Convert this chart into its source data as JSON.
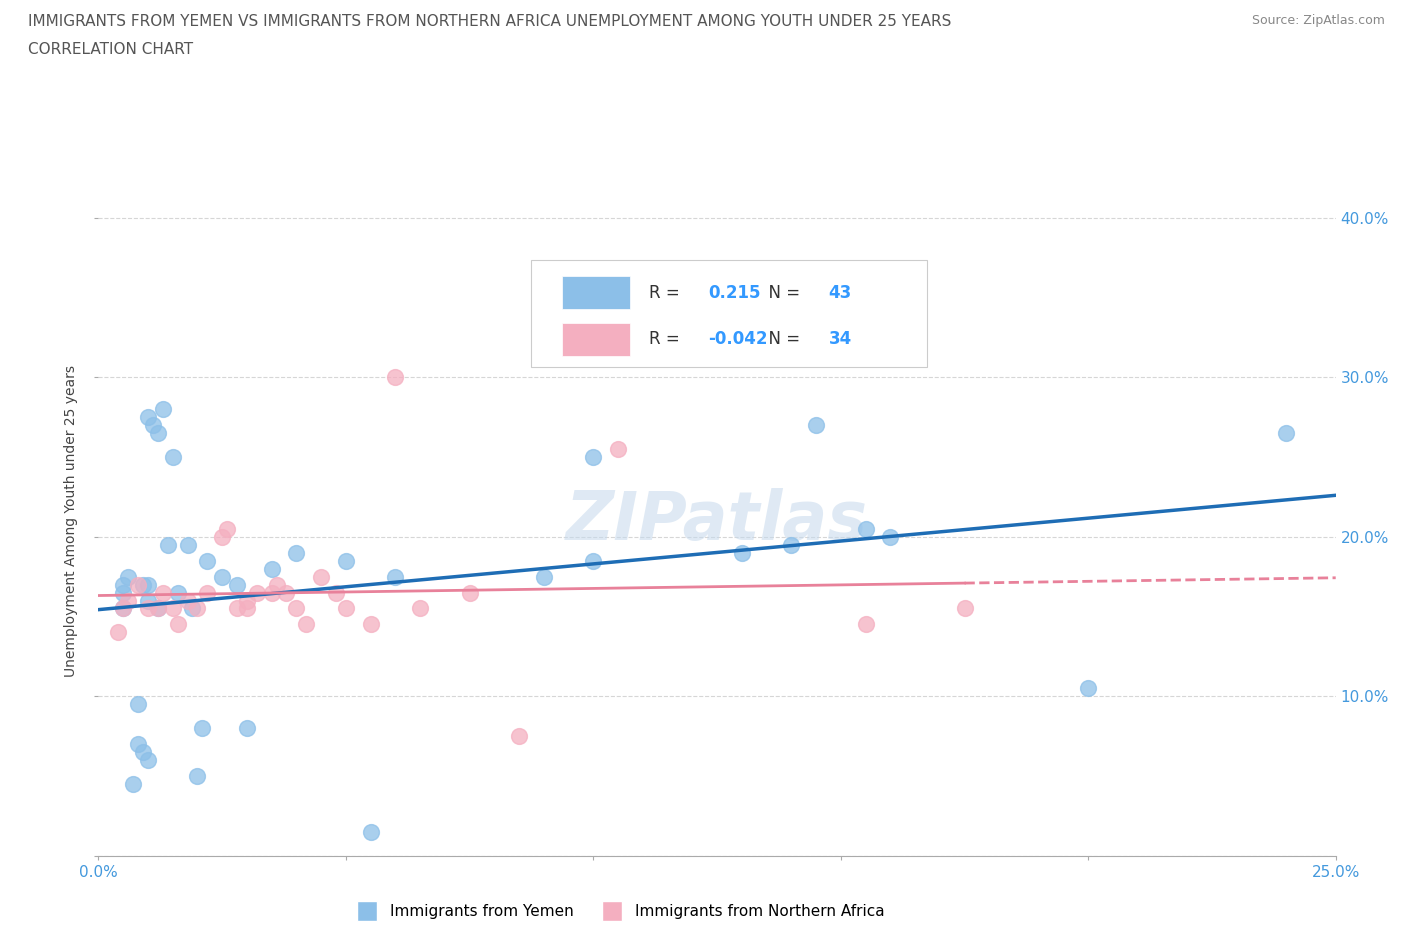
{
  "title_line1": "IMMIGRANTS FROM YEMEN VS IMMIGRANTS FROM NORTHERN AFRICA UNEMPLOYMENT AMONG YOUTH UNDER 25 YEARS",
  "title_line2": "CORRELATION CHART",
  "source": "Source: ZipAtlas.com",
  "ylabel": "Unemployment Among Youth under 25 years",
  "xlim": [
    0.0,
    0.25
  ],
  "ylim": [
    0.0,
    0.42
  ],
  "xticks": [
    0.0,
    0.05,
    0.1,
    0.15,
    0.2,
    0.25
  ],
  "xtick_labels": [
    "0.0%",
    "",
    "",
    "",
    "",
    "25.0%"
  ],
  "yticks": [
    0.0,
    0.1,
    0.2,
    0.3,
    0.4
  ],
  "ytick_labels_left": [
    "",
    "",
    "",
    "",
    ""
  ],
  "ytick_labels_right": [
    "",
    "10.0%",
    "20.0%",
    "30.0%",
    "40.0%"
  ],
  "yemen_color": "#8cbfe8",
  "northern_africa_color": "#f4afc0",
  "yemen_line_color": "#1e6db5",
  "northern_africa_line_color": "#e8819a",
  "R_yemen": 0.215,
  "N_yemen": 43,
  "R_northern_africa": -0.042,
  "N_northern_africa": 34,
  "watermark": "ZIPatlas",
  "yemen_x": [
    0.005,
    0.005,
    0.005,
    0.006,
    0.007,
    0.008,
    0.008,
    0.009,
    0.009,
    0.01,
    0.01,
    0.01,
    0.01,
    0.011,
    0.012,
    0.012,
    0.013,
    0.014,
    0.015,
    0.016,
    0.018,
    0.019,
    0.02,
    0.021,
    0.022,
    0.025,
    0.028,
    0.03,
    0.035,
    0.04,
    0.05,
    0.055,
    0.06,
    0.09,
    0.1,
    0.1,
    0.13,
    0.14,
    0.145,
    0.155,
    0.16,
    0.2,
    0.24
  ],
  "yemen_y": [
    0.155,
    0.165,
    0.17,
    0.175,
    0.045,
    0.07,
    0.095,
    0.065,
    0.17,
    0.06,
    0.16,
    0.17,
    0.275,
    0.27,
    0.155,
    0.265,
    0.28,
    0.195,
    0.25,
    0.165,
    0.195,
    0.155,
    0.05,
    0.08,
    0.185,
    0.175,
    0.17,
    0.08,
    0.18,
    0.19,
    0.185,
    0.015,
    0.175,
    0.175,
    0.185,
    0.25,
    0.19,
    0.195,
    0.27,
    0.205,
    0.2,
    0.105,
    0.265
  ],
  "northern_africa_x": [
    0.004,
    0.005,
    0.006,
    0.008,
    0.01,
    0.012,
    0.013,
    0.015,
    0.016,
    0.018,
    0.02,
    0.022,
    0.025,
    0.026,
    0.028,
    0.03,
    0.03,
    0.032,
    0.035,
    0.036,
    0.038,
    0.04,
    0.042,
    0.045,
    0.048,
    0.05,
    0.055,
    0.06,
    0.065,
    0.075,
    0.085,
    0.105,
    0.155,
    0.175
  ],
  "northern_africa_y": [
    0.14,
    0.155,
    0.16,
    0.17,
    0.155,
    0.155,
    0.165,
    0.155,
    0.145,
    0.16,
    0.155,
    0.165,
    0.2,
    0.205,
    0.155,
    0.155,
    0.16,
    0.165,
    0.165,
    0.17,
    0.165,
    0.155,
    0.145,
    0.175,
    0.165,
    0.155,
    0.145,
    0.3,
    0.155,
    0.165,
    0.075,
    0.255,
    0.145,
    0.155
  ],
  "legend_R_label": "R = ",
  "legend_N_label": "N = ",
  "legend_bottom_yemen": "Immigrants from Yemen",
  "legend_bottom_na": "Immigrants from Northern Africa"
}
